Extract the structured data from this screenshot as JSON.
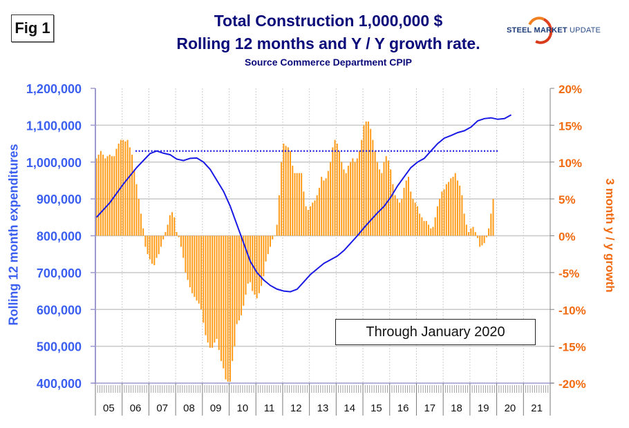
{
  "fig_label": "Fig 1",
  "title": "Total Construction 1,000,000 $",
  "subtitle": "Rolling 12 months and Y / Y growth rate.",
  "source": "Source Commerce Department CPIP",
  "logo": {
    "part1": "STEEL",
    "part2": " MARKET",
    "part3": " UPDATE"
  },
  "annotation": "Through January 2020",
  "colors": {
    "bars": "#ff9c1a",
    "line": "#1a1ae6",
    "left_axis": "#3a5ef0",
    "right_axis": "#f26a10",
    "title": "#0a0a7a"
  },
  "chart_data": {
    "type": "bar+line",
    "title": "Total Construction 1,000,000 $ Rolling 12 months and Y / Y growth rate.",
    "ylabel": "Rolling 12 month expenditures",
    "y2label": "3 month y / y growth",
    "ylim": [
      400000,
      1200000
    ],
    "y2lim": [
      -20,
      20
    ],
    "yticks": [
      "1,200,000",
      "1,100,000",
      "1,000,000",
      "900,000",
      "800,000",
      "700,000",
      "600,000",
      "500,000",
      "400,000"
    ],
    "y2ticks": [
      "20%",
      "15%",
      "10%",
      "5%",
      "0%",
      "-5%",
      "-10%",
      "-15%",
      "-20%"
    ],
    "xticks": [
      "05",
      "06",
      "07",
      "08",
      "09",
      "10",
      "11",
      "12",
      "13",
      "14",
      "15",
      "16",
      "17",
      "18",
      "19",
      "20",
      "21"
    ],
    "x_start": "2005-01",
    "x_end_axis": "2021-12",
    "grid": true,
    "series": [
      {
        "name": "3 month y/y growth (%)",
        "type": "bar",
        "axis": "right",
        "values": [
          10.5,
          11,
          11.5,
          11,
          10.5,
          10.8,
          11,
          10.8,
          10.8,
          11.8,
          12.5,
          13,
          13,
          12.8,
          13,
          12,
          11,
          9,
          7,
          5,
          3,
          1,
          -1.5,
          -2.5,
          -3.2,
          -3.8,
          -4,
          -3,
          -2.5,
          -1.5,
          -0.5,
          0.5,
          1.5,
          2.8,
          3.2,
          2.5,
          0.5,
          -0.2,
          -1.5,
          -3,
          -5,
          -6,
          -7,
          -7.8,
          -8.3,
          -8.8,
          -9.2,
          -10,
          -11.8,
          -13.5,
          -14.5,
          -15.2,
          -15.2,
          -14.5,
          -14,
          -15.5,
          -17,
          -18,
          -19.5,
          -19.8,
          -19.8,
          -17,
          -15,
          -12,
          -11.5,
          -10.8,
          -9.5,
          -8,
          -6.5,
          -6.3,
          -7.5,
          -8,
          -8.5,
          -7.8,
          -6.8,
          -5.5,
          -3.5,
          -2.5,
          -1.5,
          -0.5,
          0,
          1.5,
          5.5,
          10,
          12.5,
          12.2,
          12,
          11.5,
          9.5,
          8.5,
          8.5,
          8.5,
          8.5,
          6,
          4,
          3.5,
          4,
          4.5,
          4.8,
          5.5,
          6.5,
          8,
          7.5,
          7.8,
          8.8,
          10,
          12,
          13,
          12.5,
          11.5,
          10,
          9,
          8.5,
          9.5,
          10,
          10.5,
          10,
          10.5,
          11.5,
          13,
          15,
          15.5,
          15.5,
          14.5,
          13,
          11.5,
          10,
          9,
          8.5,
          10,
          10.8,
          10.2,
          9,
          7,
          5.5,
          5,
          4.5,
          5,
          6.5,
          7.5,
          8,
          6,
          5,
          4.5,
          4,
          3,
          2.5,
          2,
          2,
          1.5,
          1,
          1.2,
          2.5,
          4,
          5,
          6,
          6.3,
          7,
          7.3,
          7.8,
          8,
          8.5,
          7.5,
          6.8,
          5.5,
          3,
          1.5,
          0.5,
          1,
          1.2,
          0.5,
          -0.3,
          -1.5,
          -1.3,
          -1,
          -0.2,
          1,
          3,
          5
        ]
      },
      {
        "name": "Rolling 12 month expenditures",
        "type": "line",
        "axis": "left",
        "values": [
          [
            0,
            850000
          ],
          [
            6,
            890000
          ],
          [
            12,
            940000
          ],
          [
            18,
            985000
          ],
          [
            24,
            1023000
          ],
          [
            27,
            1030000
          ],
          [
            30,
            1024000
          ],
          [
            33,
            1020000
          ],
          [
            36,
            1008000
          ],
          [
            39,
            1004000
          ],
          [
            42,
            1010000
          ],
          [
            45,
            1011000
          ],
          [
            48,
            1000000
          ],
          [
            51,
            980000
          ],
          [
            54,
            950000
          ],
          [
            57,
            920000
          ],
          [
            60,
            880000
          ],
          [
            63,
            830000
          ],
          [
            66,
            780000
          ],
          [
            69,
            730000
          ],
          [
            72,
            700000
          ],
          [
            75,
            680000
          ],
          [
            78,
            665000
          ],
          [
            81,
            655000
          ],
          [
            84,
            650000
          ],
          [
            87,
            648000
          ],
          [
            90,
            655000
          ],
          [
            93,
            675000
          ],
          [
            96,
            695000
          ],
          [
            99,
            710000
          ],
          [
            102,
            725000
          ],
          [
            105,
            735000
          ],
          [
            108,
            745000
          ],
          [
            111,
            760000
          ],
          [
            114,
            780000
          ],
          [
            117,
            800000
          ],
          [
            120,
            822000
          ],
          [
            123,
            842000
          ],
          [
            126,
            862000
          ],
          [
            129,
            880000
          ],
          [
            132,
            905000
          ],
          [
            135,
            935000
          ],
          [
            138,
            960000
          ],
          [
            141,
            985000
          ],
          [
            144,
            1000000
          ],
          [
            147,
            1010000
          ],
          [
            150,
            1030000
          ],
          [
            153,
            1050000
          ],
          [
            156,
            1065000
          ],
          [
            159,
            1072000
          ],
          [
            162,
            1080000
          ],
          [
            165,
            1085000
          ],
          [
            168,
            1095000
          ],
          [
            171,
            1112000
          ],
          [
            174,
            1118000
          ],
          [
            177,
            1120000
          ],
          [
            180,
            1116000
          ],
          [
            183,
            1118000
          ],
          [
            186,
            1128000
          ]
        ]
      },
      {
        "name": "Reference level",
        "type": "dotted-line",
        "axis": "left",
        "value": 1030000,
        "from_month": 18,
        "to_month": 180
      }
    ]
  }
}
